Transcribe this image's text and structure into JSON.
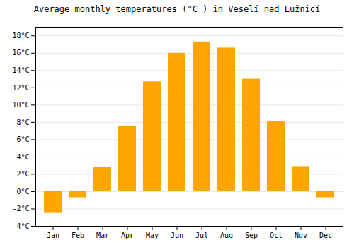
{
  "chart_data": {
    "type": "bar",
    "title": "Average monthly temperatures (°C ) in Veselí nad Lužnicí",
    "categories": [
      "Jan",
      "Feb",
      "Mar",
      "Apr",
      "May",
      "Jun",
      "Jul",
      "Aug",
      "Sep",
      "Oct",
      "Nov",
      "Dec"
    ],
    "values": [
      -2.5,
      -0.7,
      2.8,
      7.5,
      12.7,
      16.0,
      17.3,
      16.6,
      13.0,
      8.1,
      2.9,
      -0.7
    ],
    "color": "#FFA500",
    "ylim": [
      -4,
      19
    ],
    "yticks": [
      {
        "value": -4,
        "label": "-4°C"
      },
      {
        "value": -2,
        "label": "-2°C"
      },
      {
        "value": 0,
        "label": "0°C"
      },
      {
        "value": 2,
        "label": "2°C"
      },
      {
        "value": 4,
        "label": "4°C"
      },
      {
        "value": 6,
        "label": "6°C"
      },
      {
        "value": 8,
        "label": "8°C"
      },
      {
        "value": 10,
        "label": "10°C"
      },
      {
        "value": 12,
        "label": "12°C"
      },
      {
        "value": 14,
        "label": "14°C"
      },
      {
        "value": 16,
        "label": "16°C"
      },
      {
        "value": 18,
        "label": "18°C"
      }
    ],
    "grid": true
  }
}
